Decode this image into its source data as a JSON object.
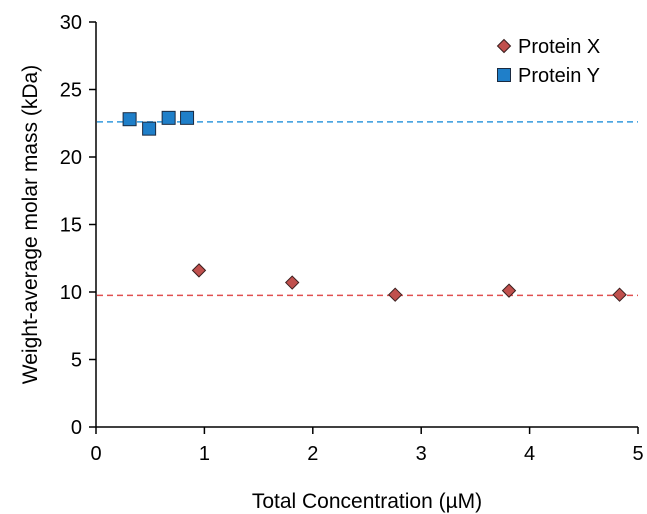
{
  "chart_data": {
    "type": "scatter",
    "xlabel": "Total Concentration (µM)",
    "ylabel": "Weight-average molar mass (kDa)",
    "xlim": [
      0,
      5
    ],
    "ylim": [
      0,
      30
    ],
    "x_ticks": [
      "0",
      "1",
      "2",
      "3",
      "4",
      "5"
    ],
    "y_ticks": [
      "0",
      "5",
      "10",
      "15",
      "20",
      "25",
      "30"
    ],
    "grid": false,
    "legend_position": "top-right",
    "series": [
      {
        "name": "Protein X",
        "marker": "diamond",
        "color": "#c0504d",
        "x": [
          0.95,
          1.81,
          2.76,
          3.81,
          4.83
        ],
        "y": [
          11.6,
          10.7,
          9.8,
          10.1,
          9.8
        ],
        "reference_line": 9.75,
        "reference_color": "#e05050"
      },
      {
        "name": "Protein Y",
        "marker": "square",
        "color": "#1f7fc9",
        "x": [
          0.31,
          0.49,
          0.67,
          0.84
        ],
        "y": [
          22.8,
          22.1,
          22.9,
          22.9
        ],
        "reference_line": 22.6,
        "reference_color": "#3399dd"
      }
    ]
  }
}
